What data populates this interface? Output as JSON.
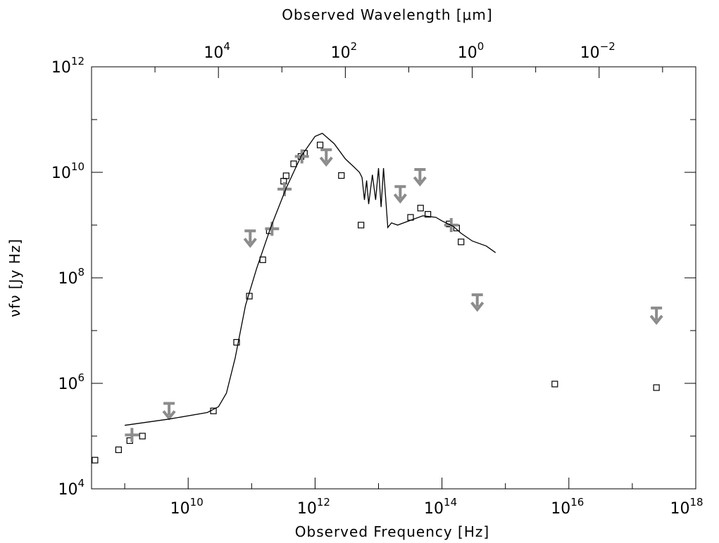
{
  "chart_data": {
    "type": "scatter",
    "title": "",
    "xlabel": "Observed Frequency [Hz]",
    "x2label": "Observed Wavelength [μm]",
    "ylabel": "νfν [Jy Hz]",
    "xscale": "log",
    "yscale": "log",
    "xlim": [
      300000000.0,
      1e+18
    ],
    "ylim": [
      10000.0,
      1000000000000.0
    ],
    "grid": false,
    "x_ticks": [
      {
        "base": "10",
        "exp": "10",
        "value": 10000000000.0
      },
      {
        "base": "10",
        "exp": "12",
        "value": 1000000000000.0
      },
      {
        "base": "10",
        "exp": "14",
        "value": 100000000000000.0
      },
      {
        "base": "10",
        "exp": "16",
        "value": 1e+16
      },
      {
        "base": "10",
        "exp": "18",
        "value": 1e+18
      }
    ],
    "x2_ticks": [
      {
        "base": "10",
        "exp": "4",
        "wavelength_um": 10000
      },
      {
        "base": "10",
        "exp": "2",
        "wavelength_um": 100
      },
      {
        "base": "10",
        "exp": "0",
        "wavelength_um": 1
      },
      {
        "base": "10",
        "exp": "−2",
        "wavelength_um": 0.01
      }
    ],
    "y_ticks": [
      {
        "base": "10",
        "exp": "4",
        "value": 10000.0
      },
      {
        "base": "10",
        "exp": "6",
        "value": 1000000.0
      },
      {
        "base": "10",
        "exp": "8",
        "value": 100000000.0
      },
      {
        "base": "10",
        "exp": "10",
        "value": 10000000000.0
      },
      {
        "base": "10",
        "exp": "12",
        "value": 1000000000000.0
      }
    ],
    "series": [
      {
        "type": "scatter",
        "marker": "open-square",
        "color": "#000000",
        "points": [
          [
            340000000.0,
            35000.0
          ],
          [
            800000000.0,
            55000.0
          ],
          [
            1200000000.0,
            82000.0
          ],
          [
            1900000000.0,
            100000.0
          ],
          [
            25000000000.0,
            300000.0
          ],
          [
            58000000000.0,
            6000000.0
          ],
          [
            92000000000.0,
            45000000.0
          ],
          [
            150000000000.0,
            220000000.0
          ],
          [
            190000000000.0,
            780000000.0
          ],
          [
            320000000000.0,
            6800000000.0
          ],
          [
            350000000000.0,
            8600000000.0
          ],
          [
            460000000000.0,
            14500000000.0
          ],
          [
            600000000000.0,
            20000000000.0
          ],
          [
            680000000000.0,
            23000000000.0
          ],
          [
            1200000000000.0,
            33000000000.0
          ],
          [
            2600000000000.0,
            8700000000.0
          ],
          [
            5300000000000.0,
            1000000000.0
          ],
          [
            32000000000000.0,
            1400000000.0
          ],
          [
            46000000000000.0,
            2100000000.0
          ],
          [
            60000000000000.0,
            1600000000.0
          ],
          [
            130000000000000.0,
            1050000000.0
          ],
          [
            170000000000000.0,
            880000000.0
          ],
          [
            200000000000000.0,
            480000000.0
          ],
          [
            6000000000000000.0,
            970000.0
          ],
          [
            2.4e+17,
            830000.0
          ]
        ]
      },
      {
        "type": "scatter",
        "marker": "plus",
        "color": "#8c8c8c",
        "points": [
          [
            1300000000.0,
            105000.0
          ],
          [
            210000000000.0,
            850000000.0
          ],
          [
            330000000000.0,
            4800000000.0
          ],
          [
            620000000000.0,
            20000000000.0
          ],
          [
            140000000000000.0,
            1000000000.0
          ]
        ]
      },
      {
        "type": "upper-limit",
        "marker": "down-arrow",
        "color": "#8c8c8c",
        "points": [
          [
            5000000000.0,
            280000.0
          ],
          [
            95000000000.0,
            520000000.0
          ],
          [
            1500000000000.0,
            18000000000.0
          ],
          [
            22000000000000.0,
            3600000000.0
          ],
          [
            45000000000000.0,
            7600000000.0
          ],
          [
            360000000000000.0,
            32000000.0
          ],
          [
            2.4e+17,
            18000000.0
          ]
        ]
      },
      {
        "type": "line",
        "name": "",
        "color": "#000000",
        "points": [
          [
            1000000000.0,
            160000.0
          ],
          [
            5000000000.0,
            210000.0
          ],
          [
            20000000000.0,
            280000.0
          ],
          [
            30000000000.0,
            360000.0
          ],
          [
            40000000000.0,
            650000.0
          ],
          [
            55000000000.0,
            3000000.0
          ],
          [
            80000000000.0,
            30000000.0
          ],
          [
            120000000000.0,
            150000000.0
          ],
          [
            200000000000.0,
            900000000.0
          ],
          [
            350000000000.0,
            5000000000.0
          ],
          [
            600000000000.0,
            20000000000.0
          ],
          [
            1000000000000.0,
            48000000000.0
          ],
          [
            1300000000000.0,
            55000000000.0
          ],
          [
            2000000000000.0,
            35000000000.0
          ],
          [
            3000000000000.0,
            18000000000.0
          ],
          [
            4000000000000.0,
            13000000000.0
          ],
          [
            5000000000000.0,
            10000000000.0
          ],
          [
            5500000000000.0,
            8000000000.0
          ],
          [
            6000000000000.0,
            3000000000.0
          ],
          [
            6500000000000.0,
            7000000000.0
          ],
          [
            7000000000000.0,
            2500000000.0
          ],
          [
            8000000000000.0,
            9000000000.0
          ],
          [
            9000000000000.0,
            3000000000.0
          ],
          [
            10000000000000.0,
            12000000000.0
          ],
          [
            11000000000000.0,
            2200000000.0
          ],
          [
            12000000000000.0,
            12000000000.0
          ],
          [
            14000000000000.0,
            900000000.0
          ],
          [
            16000000000000.0,
            1100000000.0
          ],
          [
            20000000000000.0,
            1000000000.0
          ],
          [
            30000000000000.0,
            1200000000.0
          ],
          [
            50000000000000.0,
            1500000000.0
          ],
          [
            80000000000000.0,
            1400000000.0
          ],
          [
            100000000000000.0,
            1200000000.0
          ],
          [
            150000000000000.0,
            950000000.0
          ],
          [
            200000000000000.0,
            700000000.0
          ],
          [
            300000000000000.0,
            500000000.0
          ],
          [
            500000000000000.0,
            400000000.0
          ],
          [
            700000000000000.0,
            300000000.0
          ]
        ]
      }
    ]
  }
}
